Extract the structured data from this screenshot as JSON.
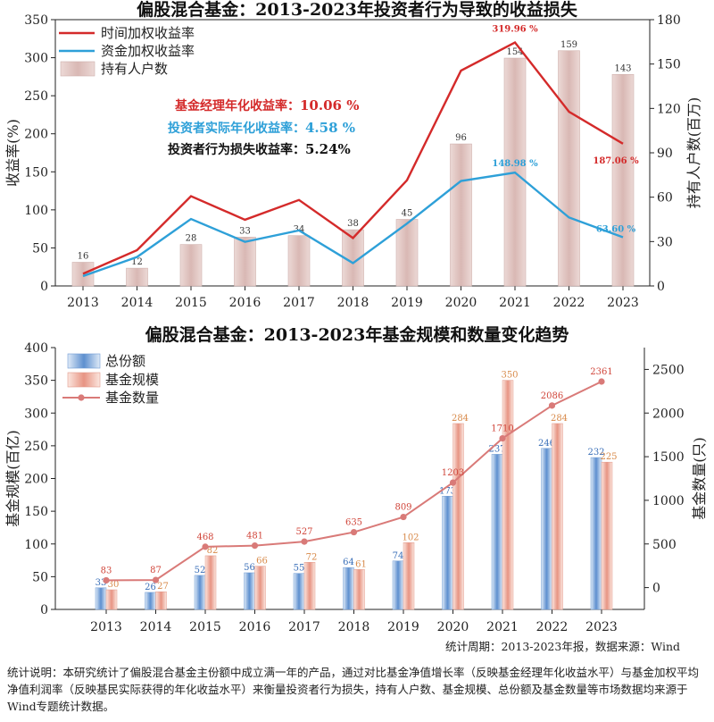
{
  "chart_data": [
    {
      "type": "bar",
      "title": "偏股混合基金：2013-2023年投资者行为导致的收益损失",
      "categories": [
        "2013",
        "2014",
        "2015",
        "2016",
        "2017",
        "2018",
        "2019",
        "2020",
        "2021",
        "2022",
        "2023"
      ],
      "ylabel": "收益率(%)",
      "y2label": "持有人户数(百万)",
      "ylim": [
        0,
        350
      ],
      "y2lim": [
        0,
        180
      ],
      "yticks": [
        0,
        50,
        100,
        150,
        200,
        250,
        300,
        350
      ],
      "y2ticks": [
        0,
        30,
        60,
        90,
        120,
        150,
        180
      ],
      "legend_position": "top-left",
      "series": [
        {
          "name": "时间加权收益率",
          "type": "line",
          "axis": "left",
          "color": "#d42a2a",
          "values": [
            16,
            47,
            118,
            87,
            113,
            63,
            139,
            283,
            320,
            229,
            187
          ]
        },
        {
          "name": "资金加权收益率",
          "type": "line",
          "axis": "left",
          "color": "#2ea0d8",
          "values": [
            13,
            38,
            88,
            58,
            73,
            30,
            82,
            138,
            149,
            90,
            64
          ]
        },
        {
          "name": "持有人户数",
          "type": "bar",
          "axis": "right",
          "color": "#e8cfcb",
          "values": [
            16,
            12,
            28,
            33,
            34,
            38,
            45,
            96,
            154,
            159,
            143
          ]
        }
      ],
      "point_labels": [
        {
          "series": 0,
          "index": 8,
          "text": "319.96 %"
        },
        {
          "series": 0,
          "index": 10,
          "text": "187.06 %"
        },
        {
          "series": 1,
          "index": 8,
          "text": "148.98 %"
        },
        {
          "series": 1,
          "index": 10,
          "text": "63.60 %"
        }
      ],
      "annotations": [
        {
          "label": "基金经理年化收益率：",
          "value": "10.06 %",
          "color": "#d42a2a"
        },
        {
          "label": "投资者实际年化收益率：",
          "value": "4.58 %",
          "color": "#2ea0d8"
        },
        {
          "label": "投资者行为损失收益率：",
          "value": "5.24%",
          "color": "#111111"
        }
      ]
    },
    {
      "type": "bar",
      "title": "偏股混合基金：2013-2023年基金规模和数量变化趋势",
      "categories": [
        "2013",
        "2014",
        "2015",
        "2016",
        "2017",
        "2018",
        "2019",
        "2020",
        "2021",
        "2022",
        "2023"
      ],
      "ylabel": "基金规模(百亿)",
      "y2label": "基金数量(只)",
      "ylim": [
        0,
        400
      ],
      "y2lim": [
        -250,
        2750
      ],
      "yticks": [
        0,
        50,
        100,
        150,
        200,
        250,
        300,
        350,
        400
      ],
      "y2ticks": [
        0,
        500,
        1000,
        1500,
        2000,
        2500
      ],
      "legend_position": "top-left",
      "series": [
        {
          "name": "总份额",
          "type": "bar",
          "axis": "left",
          "color": "#7aa5d8",
          "values": [
            33,
            26,
            52,
            56,
            55,
            64,
            74,
            173,
            237,
            246,
            232
          ]
        },
        {
          "name": "基金规模",
          "type": "bar",
          "axis": "left",
          "color": "#eba596",
          "values": [
            30,
            27,
            82,
            66,
            72,
            61,
            102,
            284,
            350,
            284,
            225
          ]
        },
        {
          "name": "基金数量",
          "type": "line",
          "axis": "right",
          "color": "#d97a78",
          "values": [
            83,
            87,
            468,
            481,
            527,
            635,
            809,
            1203,
            1710,
            2086,
            2361
          ]
        }
      ],
      "source_note": "统计周期：2013-2023年报，数据来源：Wind"
    }
  ],
  "footer": {
    "text": "统计说明：本研究统计了偏股混合基金主份额中成立满一年的产品，通过对比基金净值增长率（反映基金经理年化收益水平）与基金加权平均净值利润率（反映基民实际获得的年化收益水平）来衡量投资者行为损失，持有人户数、基金规模、总份额及基金数量等市场数据均来源于Wind专题统计数据。"
  }
}
